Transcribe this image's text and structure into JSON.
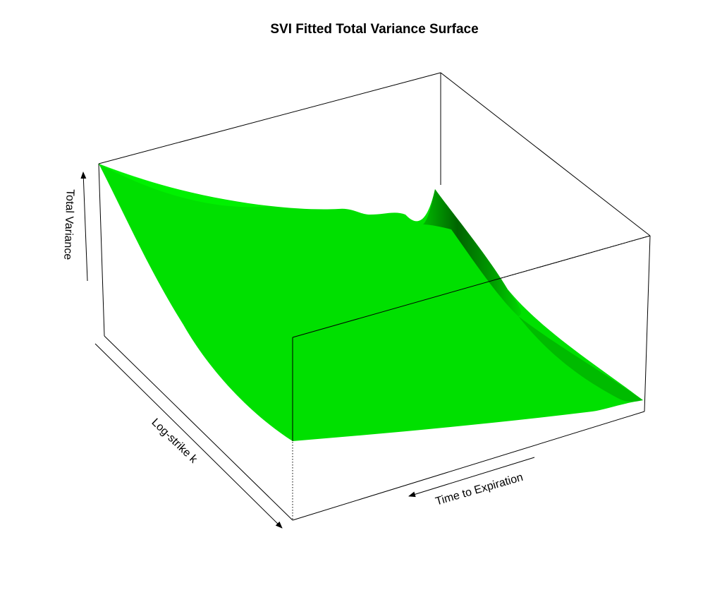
{
  "chart_data": {
    "type": "surface",
    "title": "SVI Fitted Total Variance Surface",
    "xlabel": "Log-strike k",
    "ylabel": "Time to Expiration",
    "zlabel": "Total Variance",
    "surface_color": "#00e000",
    "shadow_color": "#005a00",
    "box_color": "#000000",
    "grid": false,
    "tick_labels": false,
    "legend": false
  }
}
